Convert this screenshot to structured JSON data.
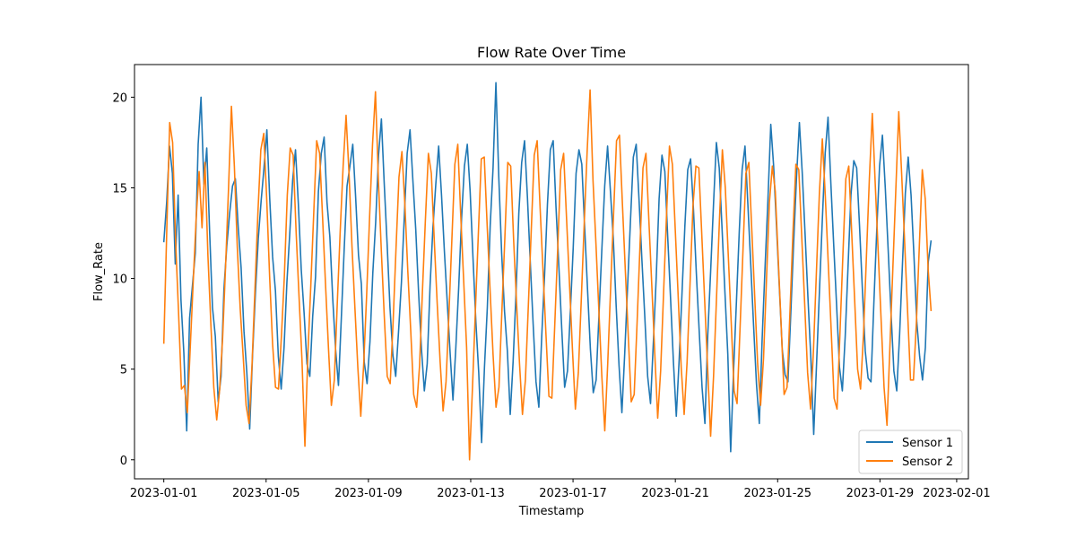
{
  "chart_data": {
    "type": "line",
    "title": "Flow Rate Over Time",
    "xlabel": "Timestamp",
    "ylabel": "Flow_Rate",
    "x_start": "2023-01-01",
    "x_end": "2023-01-31",
    "xlim": [
      "2022-12-30T20:30",
      "2023-02-01T11:00"
    ],
    "ylim": [
      -1.05,
      21.8
    ],
    "x_ticks": [
      "2023-01-01",
      "2023-01-05",
      "2023-01-09",
      "2023-01-13",
      "2023-01-17",
      "2023-01-21",
      "2023-01-25",
      "2023-01-29",
      "2023-02-01"
    ],
    "y_ticks": [
      0,
      5,
      10,
      15,
      20
    ],
    "grid": false,
    "legend": "lower-right",
    "series": [
      {
        "name": "Sensor 1",
        "color": "#1f77b4",
        "values": [
          12.0,
          14.2,
          17.3,
          15.8,
          10.8,
          14.6,
          8.8,
          5.9,
          1.6,
          7.8,
          9.6,
          11.4,
          17.4,
          20.0,
          15.2,
          17.2,
          12.6,
          8.4,
          6.8,
          3.2,
          4.6,
          9.4,
          11.8,
          13.6,
          15.1,
          15.5,
          12.8,
          10.6,
          7.1,
          4.8,
          1.7,
          5.8,
          9.2,
          12.2,
          14.3,
          16.1,
          18.2,
          14.4,
          11.2,
          9.3,
          5.7,
          3.9,
          6.2,
          9.8,
          12.5,
          15.4,
          17.1,
          14.1,
          10.5,
          8.1,
          5.3,
          4.6,
          7.9,
          10.1,
          14.8,
          16.9,
          17.8,
          14.2,
          12.3,
          8.9,
          6.1,
          4.1,
          7.8,
          11.6,
          15.1,
          16.2,
          17.4,
          14.5,
          11.3,
          9.7,
          5.4,
          4.2,
          6.5,
          10.3,
          13.1,
          16.8,
          18.8,
          15.2,
          11.9,
          8.4,
          5.8,
          4.6,
          7.1,
          9.8,
          13.4,
          16.9,
          18.2,
          15.4,
          12.7,
          9.2,
          6.1,
          3.8,
          5.3,
          9.6,
          12.8,
          15.2,
          17.3,
          14.6,
          11.5,
          8.7,
          5.9,
          3.3,
          6.2,
          9.5,
          13.3,
          16.2,
          17.4,
          14.8,
          11.1,
          7.6,
          4.8,
          0.95,
          5.1,
          8.4,
          12.9,
          16.1,
          20.8,
          15.6,
          11.4,
          8.2,
          6.0,
          2.5,
          5.4,
          9.1,
          13.6,
          16.4,
          17.6,
          14.5,
          10.9,
          7.5,
          4.3,
          2.9,
          6.8,
          10.2,
          14.1,
          17.1,
          17.6,
          13.9,
          10.6,
          7.2,
          4.0,
          4.9,
          8.2,
          11.7,
          15.8,
          17.1,
          16.3,
          12.8,
          9.4,
          6.1,
          3.7,
          4.4,
          8.0,
          11.6,
          15.1,
          17.3,
          14.8,
          12.2,
          8.5,
          5.2,
          2.6,
          5.9,
          9.6,
          13.2,
          16.7,
          17.4,
          14.3,
          11.0,
          7.9,
          4.6,
          3.1,
          6.5,
          10.1,
          14.4,
          16.8,
          15.9,
          12.3,
          8.9,
          5.4,
          2.4,
          5.5,
          9.2,
          12.9,
          16.0,
          16.6,
          13.8,
          10.3,
          7.1,
          4.0,
          2.0,
          6.9,
          10.4,
          14.1,
          17.5,
          16.1,
          12.7,
          9.2,
          5.8,
          0.45,
          4.9,
          8.7,
          12.6,
          16.0,
          17.3,
          14.1,
          10.8,
          7.4,
          4.2,
          2.0,
          6.7,
          10.6,
          14.3,
          18.5,
          16.2,
          12.9,
          9.5,
          6.1,
          4.7,
          4.3,
          8.1,
          12.0,
          15.6,
          18.6,
          15.8,
          12.4,
          8.9,
          5.6,
          1.4,
          5.3,
          9.3,
          13.2,
          16.9,
          18.9,
          15.2,
          11.8,
          8.5,
          5.1,
          3.8,
          6.8,
          10.7,
          14.6,
          16.5,
          16.1,
          12.9,
          9.4,
          6.0,
          4.5,
          4.3,
          8.6,
          12.6,
          16.2,
          17.9,
          15.0,
          11.6,
          8.1,
          4.9,
          3.8,
          6.9,
          10.8,
          14.7,
          16.7,
          14.6,
          11.3,
          7.6,
          5.7,
          4.4,
          6.2,
          10.9,
          12.1
        ]
      },
      {
        "name": "Sensor 2",
        "color": "#ff7f0e",
        "values": [
          6.4,
          12.6,
          18.6,
          17.5,
          12.1,
          8.2,
          3.9,
          4.1,
          2.6,
          6.2,
          9.8,
          13.3,
          15.9,
          12.8,
          16.4,
          11.3,
          7.5,
          4.0,
          2.2,
          3.9,
          6.7,
          10.6,
          14.9,
          19.5,
          16.2,
          11.7,
          8.3,
          5.7,
          3.0,
          2.0,
          5.2,
          9.4,
          13.6,
          17.1,
          18.0,
          14.4,
          10.1,
          6.4,
          4.0,
          3.9,
          6.8,
          10.1,
          14.6,
          17.2,
          16.8,
          12.6,
          9.0,
          5.5,
          0.75,
          5.8,
          9.6,
          13.6,
          17.6,
          16.9,
          13.4,
          9.7,
          6.2,
          3.0,
          4.4,
          8.6,
          12.6,
          16.2,
          19.0,
          15.8,
          11.8,
          8.4,
          5.1,
          2.4,
          5.3,
          9.1,
          13.4,
          17.4,
          20.3,
          15.4,
          11.5,
          7.9,
          4.6,
          4.2,
          7.6,
          11.7,
          15.6,
          17.0,
          14.1,
          10.4,
          7.1,
          3.6,
          2.9,
          5.2,
          9.4,
          13.3,
          16.9,
          15.8,
          12.1,
          8.6,
          5.4,
          2.7,
          4.3,
          8.1,
          12.2,
          16.3,
          17.4,
          13.5,
          9.9,
          6.2,
          0.0,
          4.0,
          8.3,
          12.5,
          16.6,
          16.7,
          12.9,
          9.3,
          5.8,
          2.9,
          4.0,
          8.2,
          12.2,
          16.4,
          16.2,
          12.1,
          8.6,
          5.3,
          2.5,
          4.4,
          8.5,
          12.7,
          16.8,
          17.6,
          13.9,
          10.4,
          6.9,
          3.5,
          3.4,
          7.5,
          11.7,
          16.0,
          16.9,
          13.3,
          9.7,
          6.1,
          2.8,
          4.8,
          8.8,
          13.0,
          17.0,
          20.4,
          15.4,
          11.9,
          8.2,
          4.6,
          1.6,
          5.3,
          9.5,
          13.6,
          17.6,
          17.9,
          14.1,
          10.4,
          6.8,
          3.2,
          3.6,
          7.6,
          11.9,
          16.1,
          16.9,
          13.2,
          9.6,
          5.9,
          2.3,
          4.9,
          9.2,
          13.5,
          17.3,
          16.3,
          12.6,
          8.9,
          5.1,
          2.5,
          5.4,
          9.7,
          14.0,
          16.2,
          16.1,
          12.4,
          8.7,
          5.0,
          1.3,
          4.6,
          8.9,
          13.2,
          17.1,
          15.0,
          11.3,
          7.6,
          3.8,
          3.1,
          7.2,
          11.5,
          15.8,
          16.4,
          12.7,
          9.0,
          5.3,
          3.0,
          5.6,
          9.9,
          14.2,
          16.2,
          14.8,
          11.1,
          7.4,
          3.6,
          4.0,
          8.2,
          12.5,
          16.3,
          16.0,
          12.3,
          8.6,
          4.8,
          2.8,
          6.1,
          10.4,
          14.7,
          17.7,
          14.6,
          10.9,
          7.2,
          3.4,
          2.8,
          7.0,
          11.3,
          15.5,
          16.2,
          12.5,
          8.8,
          5.0,
          3.9,
          6.9,
          11.2,
          15.5,
          19.1,
          15.2,
          11.5,
          7.7,
          4.0,
          1.9,
          6.3,
          10.6,
          14.9,
          19.2,
          15.7,
          12.0,
          8.2,
          4.4,
          4.4,
          7.6,
          11.8,
          16.0,
          14.4,
          10.5,
          8.2
        ]
      }
    ]
  }
}
